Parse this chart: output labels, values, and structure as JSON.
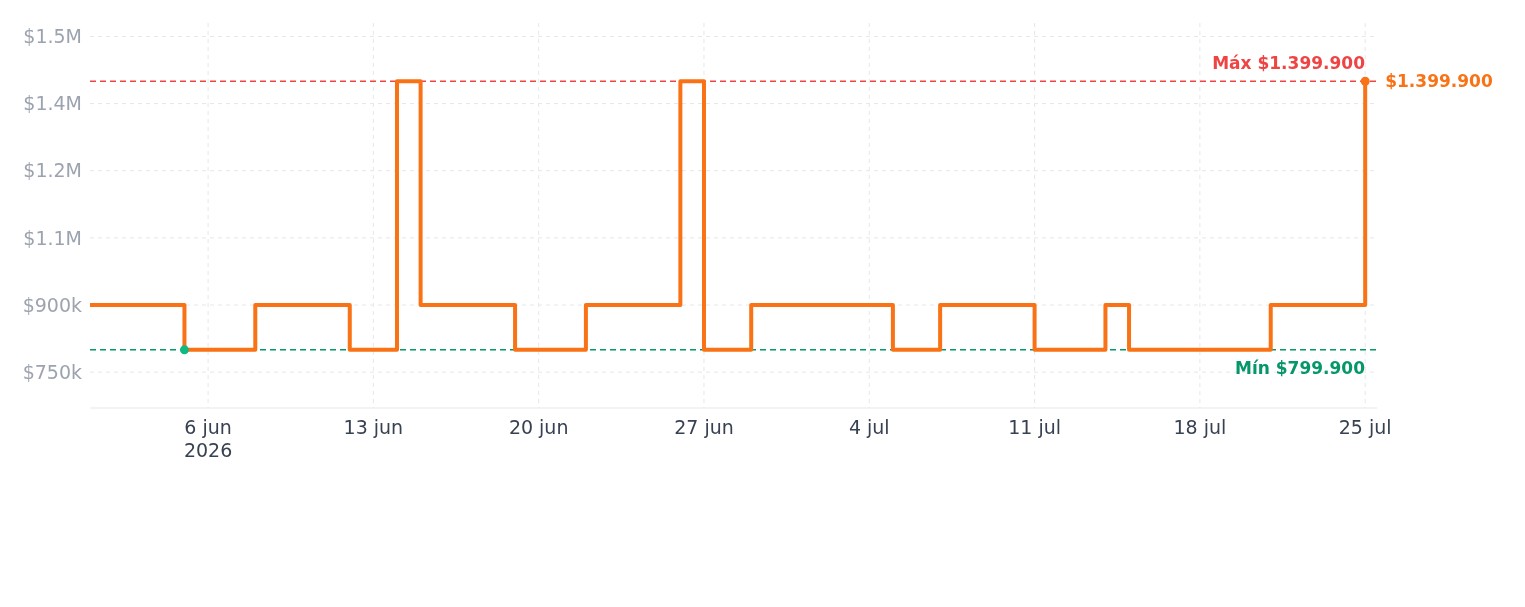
{
  "chart_data": {
    "type": "step",
    "x": [
      "2026-06-01",
      "2026-06-05",
      "2026-06-08",
      "2026-06-12",
      "2026-06-14",
      "2026-06-15",
      "2026-06-19",
      "2026-06-22",
      "2026-06-26",
      "2026-06-27",
      "2026-06-29",
      "2026-07-05",
      "2026-07-07",
      "2026-07-11",
      "2026-07-14",
      "2026-07-15",
      "2026-07-21",
      "2026-07-25"
    ],
    "series": [
      {
        "color": "#f97316",
        "marker": "none",
        "values": [
          899900,
          799900,
          899900,
          799900,
          1399900,
          899900,
          799900,
          899900,
          1399900,
          799900,
          899900,
          799900,
          899900,
          799900,
          899900,
          799900,
          899900,
          1399900
        ]
      },
      {
        "type": "scatter",
        "x": [
          "2026-07-25"
        ],
        "color": "#f97316",
        "values": [
          1399900
        ]
      },
      {
        "type": "scatter",
        "x": [
          "2026-06-05"
        ],
        "color": "#10b981",
        "values": [
          799900
        ]
      }
    ],
    "xlim": [
      "2026-06-01",
      "2026-07-25T12:00"
    ],
    "xticks": [
      {
        "value": "2026-06-06",
        "label": "6 jun\n2026"
      },
      {
        "value": "2026-06-13",
        "label": "13 jun"
      },
      {
        "value": "2026-06-20",
        "label": "20 jun"
      },
      {
        "value": "2026-06-27",
        "label": "27 jun"
      },
      {
        "value": "2026-07-04",
        "label": "4 jul"
      },
      {
        "value": "2026-07-11",
        "label": "11 jul"
      },
      {
        "value": "2026-07-18",
        "label": "18 jul"
      },
      {
        "value": "2026-07-25",
        "label": "25 jul"
      }
    ],
    "ylim": [
      670000,
      1530000
    ],
    "yticks": [
      {
        "value": 750000,
        "label": "$750k"
      },
      {
        "value": 900000,
        "label": "$900k"
      },
      {
        "value": 1050000,
        "label": "$1.1M"
      },
      {
        "value": 1200000,
        "label": "$1.2M"
      },
      {
        "value": 1350000,
        "label": "$1.4M"
      },
      {
        "value": 1500000,
        "label": "$1.5M"
      }
    ],
    "ref_lines": [
      {
        "axis": "y",
        "value": 1399900,
        "label": "Máx $1.399.900",
        "color": "#ef4444",
        "line_style": "dashed"
      },
      {
        "axis": "y",
        "value": 799900,
        "label": "Mín $799.900",
        "color": "#059669",
        "line_style": "dashed"
      }
    ],
    "annotations": [
      {
        "text": "$1.399.900",
        "x": "2026-07-25",
        "y": 1399900
      }
    ],
    "grid": true,
    "marker": "circle",
    "line_style": "solid"
  }
}
